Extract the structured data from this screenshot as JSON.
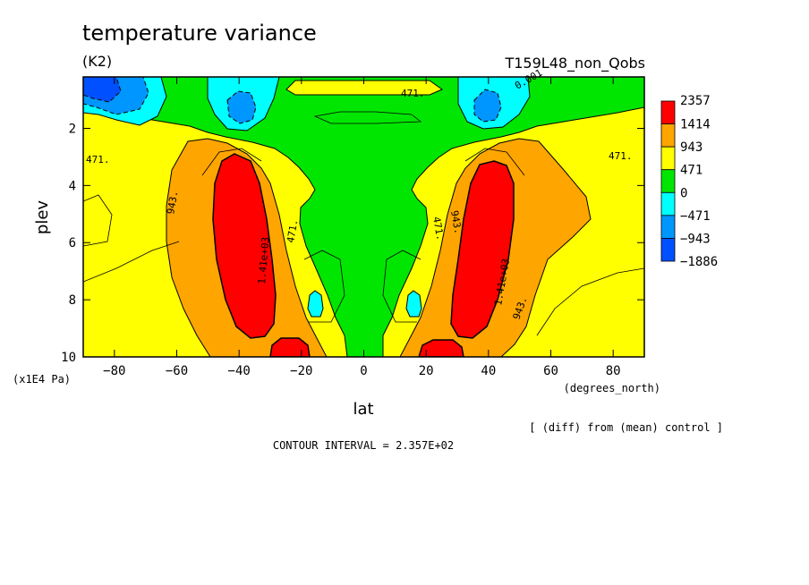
{
  "header": {
    "title": "temperature variance",
    "units": "(K2)",
    "run_name": "T159L48_non_Qobs"
  },
  "footer": {
    "comparison_note": "[ (diff) from (mean) control ]",
    "contour_interval": "CONTOUR INTERVAL = 2.357E+02"
  },
  "chart_data": {
    "type": "heatmap",
    "title": "temperature variance",
    "xlabel": "lat",
    "x_unit_label": "(degrees_north)",
    "ylabel": "plev",
    "y_unit_label": "(x1E4 Pa)",
    "xlim": [
      -90,
      90
    ],
    "ylim": [
      10,
      0.2
    ],
    "x_ticks": [
      -80,
      -60,
      -40,
      -20,
      0,
      20,
      40,
      60,
      80
    ],
    "y_ticks": [
      2,
      4,
      6,
      8,
      10
    ],
    "colorbar": {
      "levels": [
        "2357",
        "1414",
        "943",
        "471",
        "0",
        "-471",
        "-943",
        "-1886"
      ],
      "colors": [
        "#ff0000",
        "#ffa500",
        "#ffff00",
        "#00e600",
        "#00ffff",
        "#0096ff",
        "#0050ff"
      ]
    },
    "contour_labels": [
      "471.",
      "0.001",
      "471.",
      "471.",
      "943.",
      "1.41e+03",
      "471.",
      "471.",
      "943.",
      "1.41e+03",
      "943."
    ]
  }
}
